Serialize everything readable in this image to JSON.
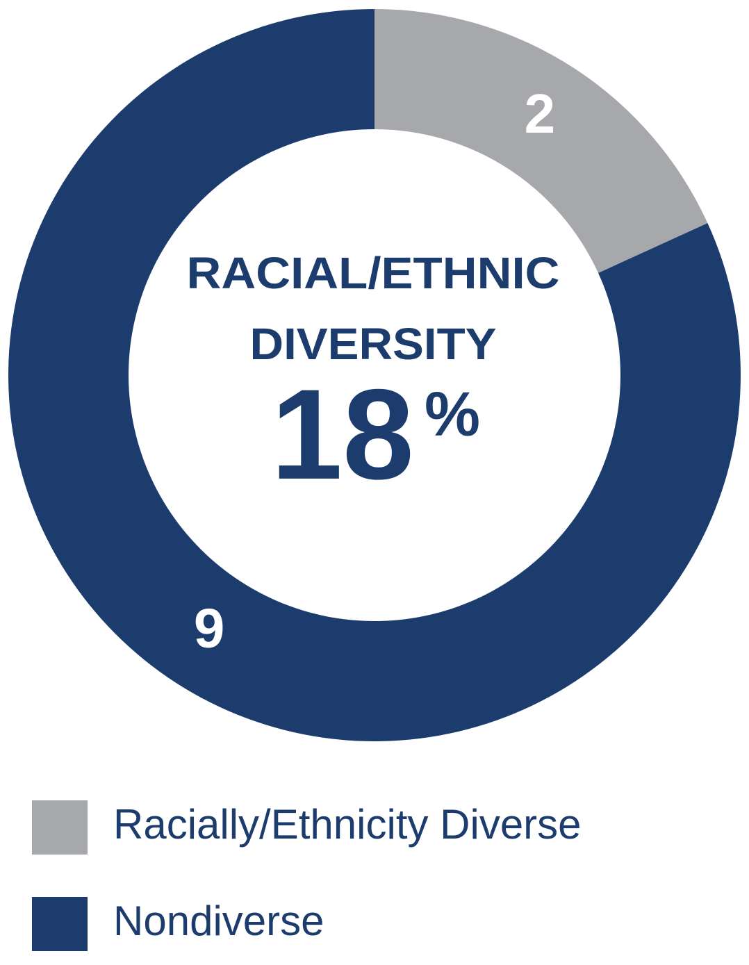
{
  "chart_data": {
    "type": "donut",
    "title_lines": [
      "RACIAL/ETHNIC",
      "DIVERSITY"
    ],
    "center_number": 18,
    "center_suffix": "%",
    "categories": [
      "Racially/Ethnicity Diverse",
      "Nondiverse"
    ],
    "values": [
      2,
      9
    ],
    "colors": [
      "#a7a8ab",
      "#1d3c6e"
    ],
    "label_color": "#ffffff",
    "text_color": "#1d3c6e"
  }
}
